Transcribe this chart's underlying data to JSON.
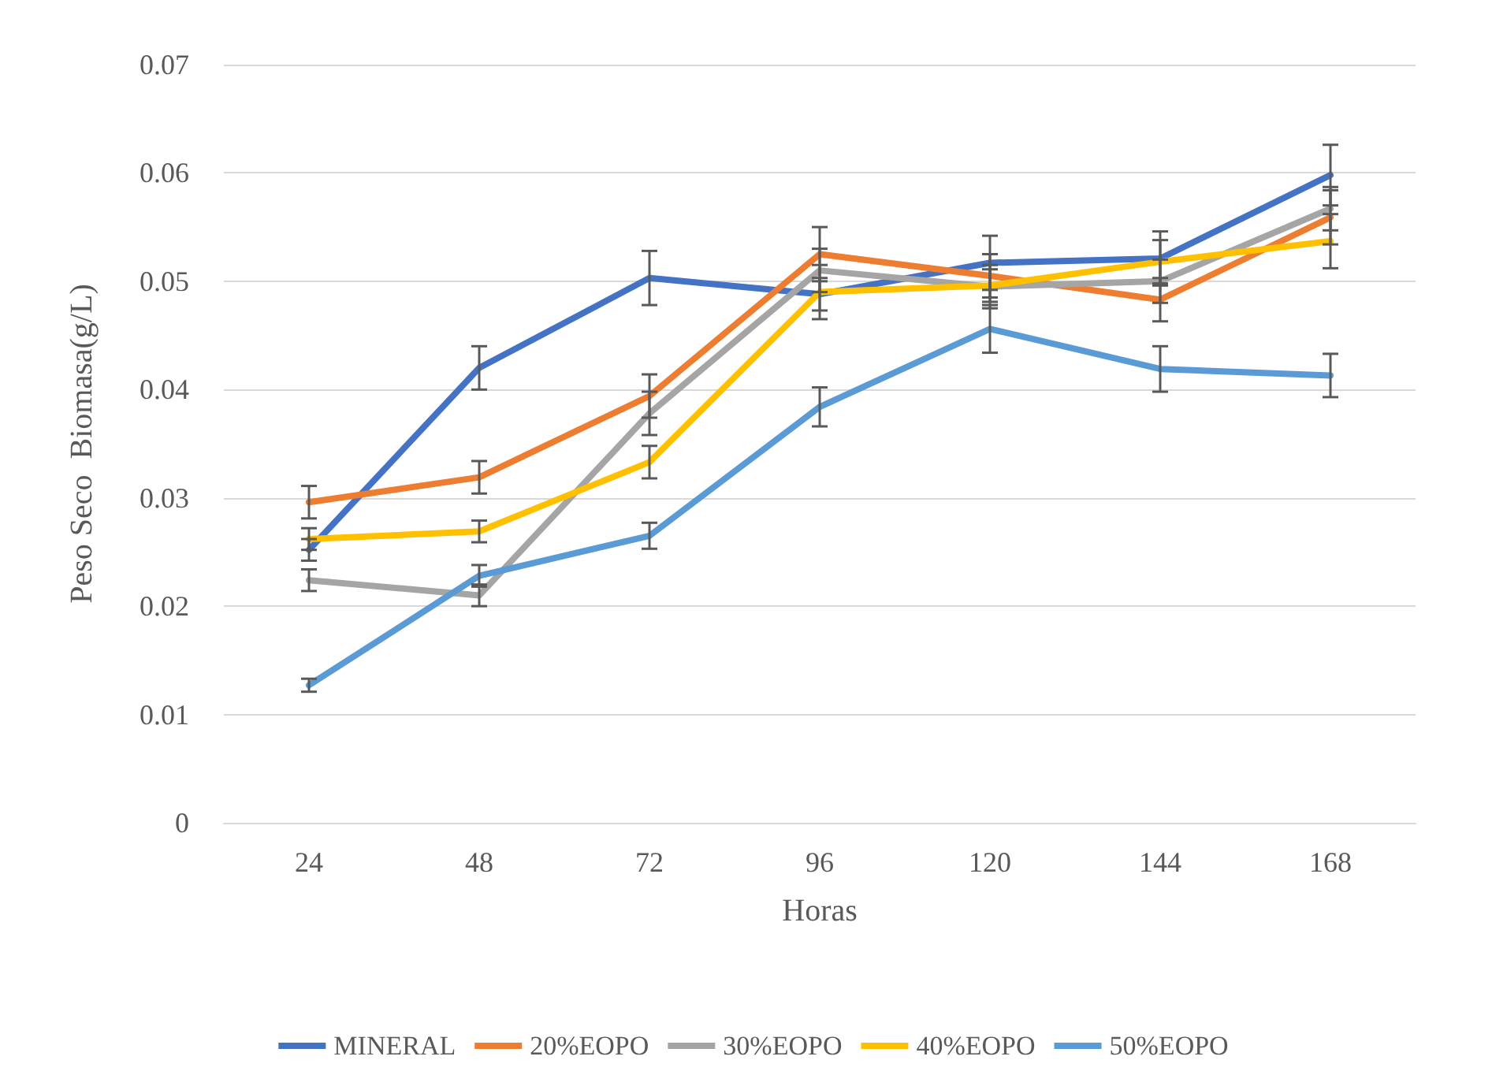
{
  "chart_data": {
    "type": "line",
    "xlabel": "Horas",
    "ylabel": "Peso Seco  Biomasa(g/L)",
    "categories": [
      "24",
      "48",
      "72",
      "96",
      "120",
      "144",
      "168"
    ],
    "series": [
      {
        "name": "MINERAL",
        "color": "#4472c4",
        "values": [
          0.0252,
          0.042,
          0.0503,
          0.0488,
          0.0517,
          0.0521,
          0.0598
        ],
        "errors": [
          0.001,
          0.002,
          0.0025,
          0.0015,
          0.0025,
          0.0025,
          0.0028
        ]
      },
      {
        "name": "20%EOPO",
        "color": "#ed7d31",
        "values": [
          0.0296,
          0.0319,
          0.0394,
          0.0525,
          0.0505,
          0.0483,
          0.0559
        ],
        "errors": [
          0.0015,
          0.0015,
          0.002,
          0.0025,
          0.002,
          0.002,
          0.0025
        ]
      },
      {
        "name": "30%EOPO",
        "color": "#a5a5a5",
        "values": [
          0.0224,
          0.021,
          0.0378,
          0.051,
          0.0495,
          0.05,
          0.0567
        ],
        "errors": [
          0.001,
          0.001,
          0.002,
          0.002,
          0.002,
          0.002,
          0.002
        ]
      },
      {
        "name": "40%EOPO",
        "color": "#ffc000",
        "values": [
          0.0262,
          0.0269,
          0.0333,
          0.049,
          0.0496,
          0.0518,
          0.0537
        ],
        "errors": [
          0.001,
          0.001,
          0.0015,
          0.0025,
          0.0015,
          0.002,
          0.0025
        ]
      },
      {
        "name": "50%EOPO",
        "color": "#5b9bd5",
        "values": [
          0.0127,
          0.0228,
          0.0265,
          0.0384,
          0.0456,
          0.0419,
          0.0413
        ],
        "errors": [
          0.0006,
          0.001,
          0.0012,
          0.0018,
          0.0022,
          0.0021,
          0.002
        ]
      }
    ],
    "ylim": [
      0,
      0.07
    ],
    "yticks": [
      0,
      0.01,
      0.02,
      0.03,
      0.04,
      0.05,
      0.06,
      0.07
    ],
    "grid": "y",
    "legend": "bottom",
    "marker": "none",
    "line_style": "solid"
  }
}
